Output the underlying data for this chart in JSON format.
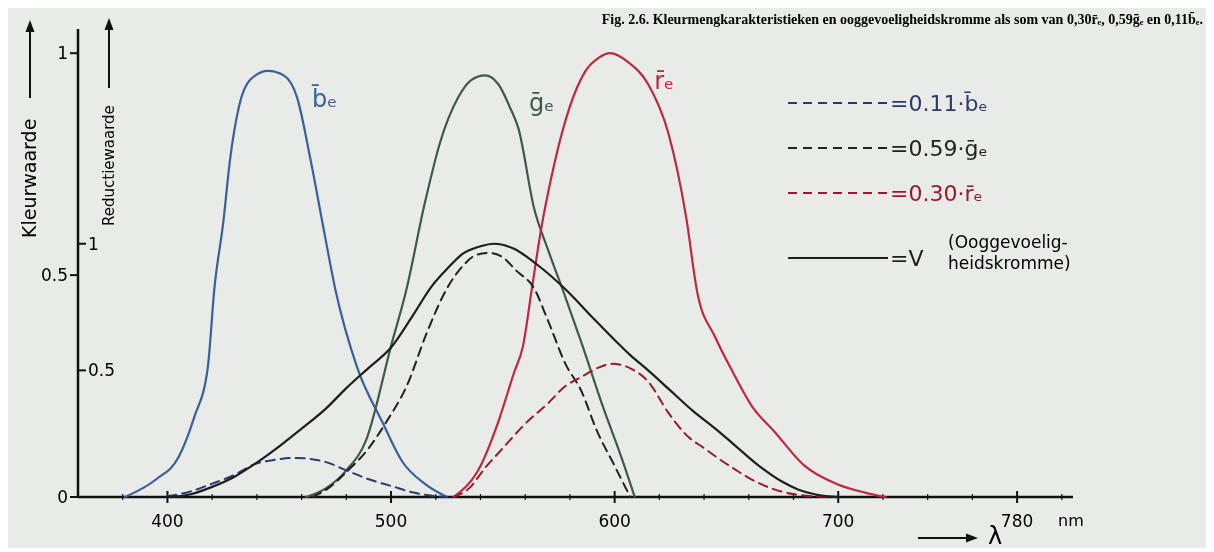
{
  "chart_data": {
    "type": "line",
    "title": "Fig. 2.6. Kleurmengkarakteristieken en ooggevoeligheidskromme als som van 0,30r̄ₑ, 0,59ḡₑ en 0,11b̄ₑ.",
    "xlabel": "λ",
    "ylabel": "Kleurwaarde",
    "y2label": "Reductiewaarde",
    "annotations": [
      "nm",
      "(Ooggevoelig-heidskromme)"
    ],
    "xlim": [
      360,
      805
    ],
    "xticks": [
      {
        "value": 380,
        "label": null
      },
      400,
      {
        "value": 420,
        "label": null
      },
      {
        "value": 440,
        "label": null
      },
      {
        "value": 460,
        "label": null
      },
      {
        "value": 480,
        "label": null
      },
      500,
      {
        "value": 520,
        "label": null
      },
      {
        "value": 540,
        "label": null
      },
      {
        "value": 560,
        "label": null
      },
      {
        "value": 580,
        "label": null
      },
      600,
      {
        "value": 620,
        "label": null
      },
      {
        "value": 640,
        "label": null
      },
      {
        "value": 660,
        "label": null
      },
      {
        "value": 680,
        "label": null
      },
      700,
      {
        "value": 720,
        "label": null
      },
      {
        "value": 740,
        "label": null
      },
      {
        "value": 760,
        "label": null
      },
      780,
      {
        "value": 800,
        "label": null
      }
    ],
    "ylim": [
      0,
      1.05
    ],
    "yticks": [
      0,
      0.5,
      1
    ],
    "y2lim": [
      0,
      1.84
    ],
    "y2ticks": [
      0.5,
      1
    ],
    "legend": "top right",
    "grid": false,
    "marker": "none",
    "series": [
      {
        "name": "b̄ₑ",
        "color": "#3a5f9a",
        "line_style": "solid",
        "x": [
          381,
          395,
          405,
          412,
          418,
          421,
          425,
          428,
          432,
          437,
          445,
          452,
          458,
          464,
          470,
          475,
          485,
          496,
          505,
          515,
          525
        ],
        "values": [
          0,
          0.04,
          0.09,
          0.18,
          0.29,
          0.47,
          0.62,
          0.76,
          0.88,
          0.94,
          0.96,
          0.95,
          0.9,
          0.76,
          0.6,
          0.47,
          0.29,
          0.17,
          0.08,
          0.03,
          0
        ]
      },
      {
        "name": "ḡₑ",
        "color": "#3d5a48",
        "line_style": "solid",
        "x": [
          462,
          471,
          480,
          489,
          500,
          507,
          515,
          522,
          530,
          536,
          542,
          548,
          553,
          557,
          564,
          570,
          578,
          585,
          595,
          603,
          609
        ],
        "values": [
          0,
          0.02,
          0.06,
          0.13,
          0.34,
          0.47,
          0.66,
          0.8,
          0.9,
          0.94,
          0.95,
          0.93,
          0.88,
          0.83,
          0.65,
          0.56,
          0.45,
          0.35,
          0.2,
          0.09,
          0
        ]
      },
      {
        "name": "r̄ₑ",
        "color": "#c0283e",
        "line_style": "solid",
        "x": [
          528,
          540,
          548,
          555,
          559,
          563,
          567,
          573,
          580,
          587,
          593,
          598,
          606,
          615,
          624,
          632,
          637,
          645,
          653,
          662,
          671,
          685,
          699,
          712,
          721
        ],
        "values": [
          0,
          0.07,
          0.17,
          0.28,
          0.34,
          0.47,
          0.6,
          0.75,
          0.88,
          0.96,
          0.99,
          1.0,
          0.98,
          0.93,
          0.82,
          0.63,
          0.46,
          0.36,
          0.28,
          0.2,
          0.15,
          0.07,
          0.03,
          0.01,
          0
        ]
      },
      {
        "name": "=0.11·b̄ₑ",
        "color": "#2a3a6a",
        "line_style": "dashed",
        "x": [
          400,
          410,
          420,
          430,
          439,
          447,
          457,
          470,
          480,
          490,
          500,
          510,
          520,
          525
        ],
        "values": [
          0.002,
          0.012,
          0.03,
          0.05,
          0.074,
          0.083,
          0.088,
          0.08,
          0.06,
          0.04,
          0.025,
          0.01,
          0.002,
          0
        ]
      },
      {
        "name": "=0.59·ḡₑ",
        "color": "#222222",
        "line_style": "dashed",
        "x": [
          465,
          472,
          480,
          490,
          498,
          507,
          516,
          525,
          532,
          538,
          544,
          550,
          556,
          564,
          570,
          578,
          585,
          592,
          600,
          607
        ],
        "values": [
          0,
          0.02,
          0.056,
          0.11,
          0.17,
          0.25,
          0.37,
          0.47,
          0.52,
          0.545,
          0.55,
          0.54,
          0.51,
          0.47,
          0.4,
          0.3,
          0.24,
          0.15,
          0.07,
          0
        ]
      },
      {
        "name": "=0.30·r̄ₑ",
        "color": "#9a1a2a",
        "line_style": "dashed",
        "x": [
          528,
          535,
          542,
          550,
          560,
          570,
          578,
          585,
          592,
          599,
          607,
          615,
          624,
          632,
          640,
          652,
          665,
          682,
          700
        ],
        "values": [
          0,
          0.02,
          0.065,
          0.11,
          0.165,
          0.21,
          0.25,
          0.27,
          0.29,
          0.3,
          0.29,
          0.26,
          0.19,
          0.14,
          0.11,
          0.068,
          0.03,
          0.005,
          0
        ]
      },
      {
        "name": "=V",
        "color": "#1e1e1e",
        "line_style": "solid",
        "axis": "y2",
        "x": [
          400,
          410,
          420,
          430,
          439,
          450,
          460,
          471,
          480,
          490,
          500,
          510,
          518,
          525,
          532,
          540,
          546,
          555,
          565,
          578,
          590,
          600,
          607,
          615,
          625,
          635,
          645,
          653,
          665,
          675,
          682,
          690,
          700
        ],
        "values": [
          0,
          0.01,
          0.04,
          0.08,
          0.13,
          0.2,
          0.27,
          0.35,
          0.43,
          0.51,
          0.59,
          0.72,
          0.83,
          0.9,
          0.96,
          0.99,
          1.0,
          0.98,
          0.92,
          0.82,
          0.71,
          0.62,
          0.56,
          0.5,
          0.42,
          0.34,
          0.27,
          0.21,
          0.12,
          0.06,
          0.03,
          0.01,
          0
        ]
      }
    ]
  }
}
